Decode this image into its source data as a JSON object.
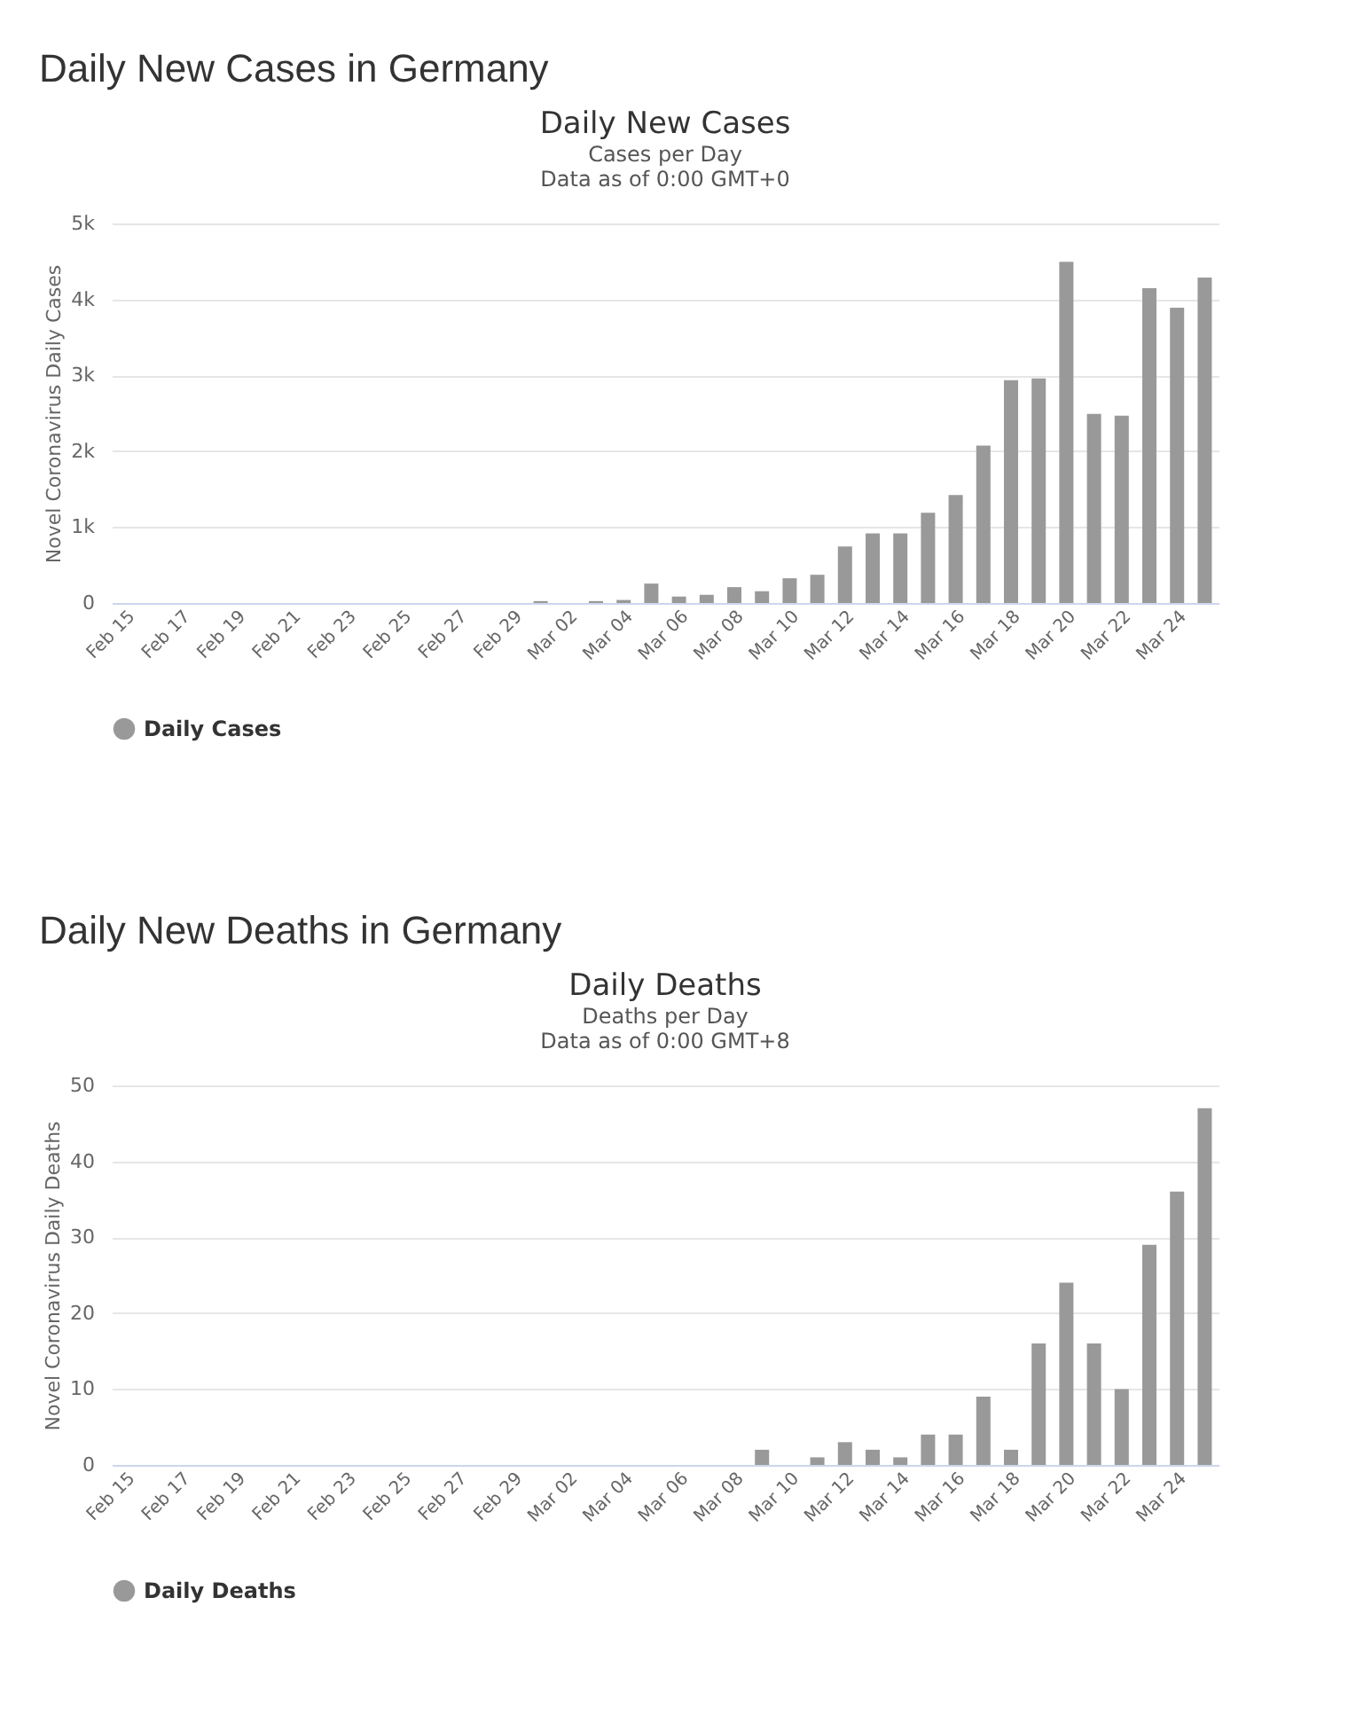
{
  "chart_data": [
    {
      "type": "bar",
      "title": "Daily New Cases in Germany",
      "subtitle": "Daily New Cases",
      "annotations": [
        "Cases per Day",
        "Data as of 0:00 GMT+0"
      ],
      "ylabel": "Novel Coronavirus Daily Cases",
      "categories": [
        "Feb 15",
        null,
        "Feb 17",
        null,
        "Feb 19",
        null,
        "Feb 21",
        null,
        "Feb 23",
        null,
        "Feb 25",
        null,
        "Feb 27",
        null,
        "Feb 29",
        null,
        "Mar 02",
        null,
        "Mar 04",
        null,
        "Mar 06",
        null,
        "Mar 08",
        null,
        "Mar 10",
        null,
        "Mar 12",
        null,
        "Mar 14",
        null,
        "Mar 16",
        null,
        "Mar 18",
        null,
        "Mar 20",
        null,
        "Mar 22",
        null,
        "Mar 24",
        null
      ],
      "series": [
        {
          "name": "Daily Cases",
          "color": "#999999",
          "values": [
            0,
            0,
            0,
            0,
            0,
            0,
            0,
            0,
            0,
            0,
            0,
            0,
            0,
            0,
            0,
            25,
            0,
            25,
            40,
            256,
            85,
            108,
            209,
            155,
            326,
            372,
            745,
            916,
            916,
            1188,
            1421,
            2073,
            2935,
            2958,
            4495,
            2492,
            2469,
            4146,
            3890,
            4286
          ]
        }
      ],
      "ylim": [
        0,
        5000
      ],
      "yticks": [
        0,
        {
          "value": 1000,
          "label": "1k"
        },
        {
          "value": 2000,
          "label": "2k"
        },
        {
          "value": 3000,
          "label": "3k"
        },
        {
          "value": 4000,
          "label": "4k"
        },
        {
          "value": 5000,
          "label": "5k"
        }
      ],
      "grid": "y",
      "legend": "bottom",
      "marker": "circle"
    },
    {
      "type": "bar",
      "title": "Daily New Deaths in Germany",
      "subtitle": "Daily Deaths",
      "annotations": [
        "Deaths per Day",
        "Data as of 0:00 GMT+8"
      ],
      "ylabel": "Novel Coronavirus Daily Deaths",
      "categories": [
        "Feb 15",
        null,
        "Feb 17",
        null,
        "Feb 19",
        null,
        "Feb 21",
        null,
        "Feb 23",
        null,
        "Feb 25",
        null,
        "Feb 27",
        null,
        "Feb 29",
        null,
        "Mar 02",
        null,
        "Mar 04",
        null,
        "Mar 06",
        null,
        "Mar 08",
        null,
        "Mar 10",
        null,
        "Mar 12",
        null,
        "Mar 14",
        null,
        "Mar 16",
        null,
        "Mar 18",
        null,
        "Mar 20",
        null,
        "Mar 22",
        null,
        "Mar 24",
        null
      ],
      "series": [
        {
          "name": "Daily Deaths",
          "color": "#999999",
          "values": [
            0,
            0,
            0,
            0,
            0,
            0,
            0,
            0,
            0,
            0,
            0,
            0,
            0,
            0,
            0,
            0,
            0,
            0,
            0,
            0,
            0,
            0,
            0,
            2,
            0,
            1,
            3,
            2,
            1,
            4,
            4,
            9,
            2,
            16,
            24,
            16,
            10,
            29,
            36,
            47
          ]
        }
      ],
      "ylim": [
        0,
        50
      ],
      "yticks": [
        0,
        10,
        20,
        30,
        40,
        50
      ],
      "grid": "y",
      "legend": "bottom",
      "marker": "circle"
    }
  ]
}
